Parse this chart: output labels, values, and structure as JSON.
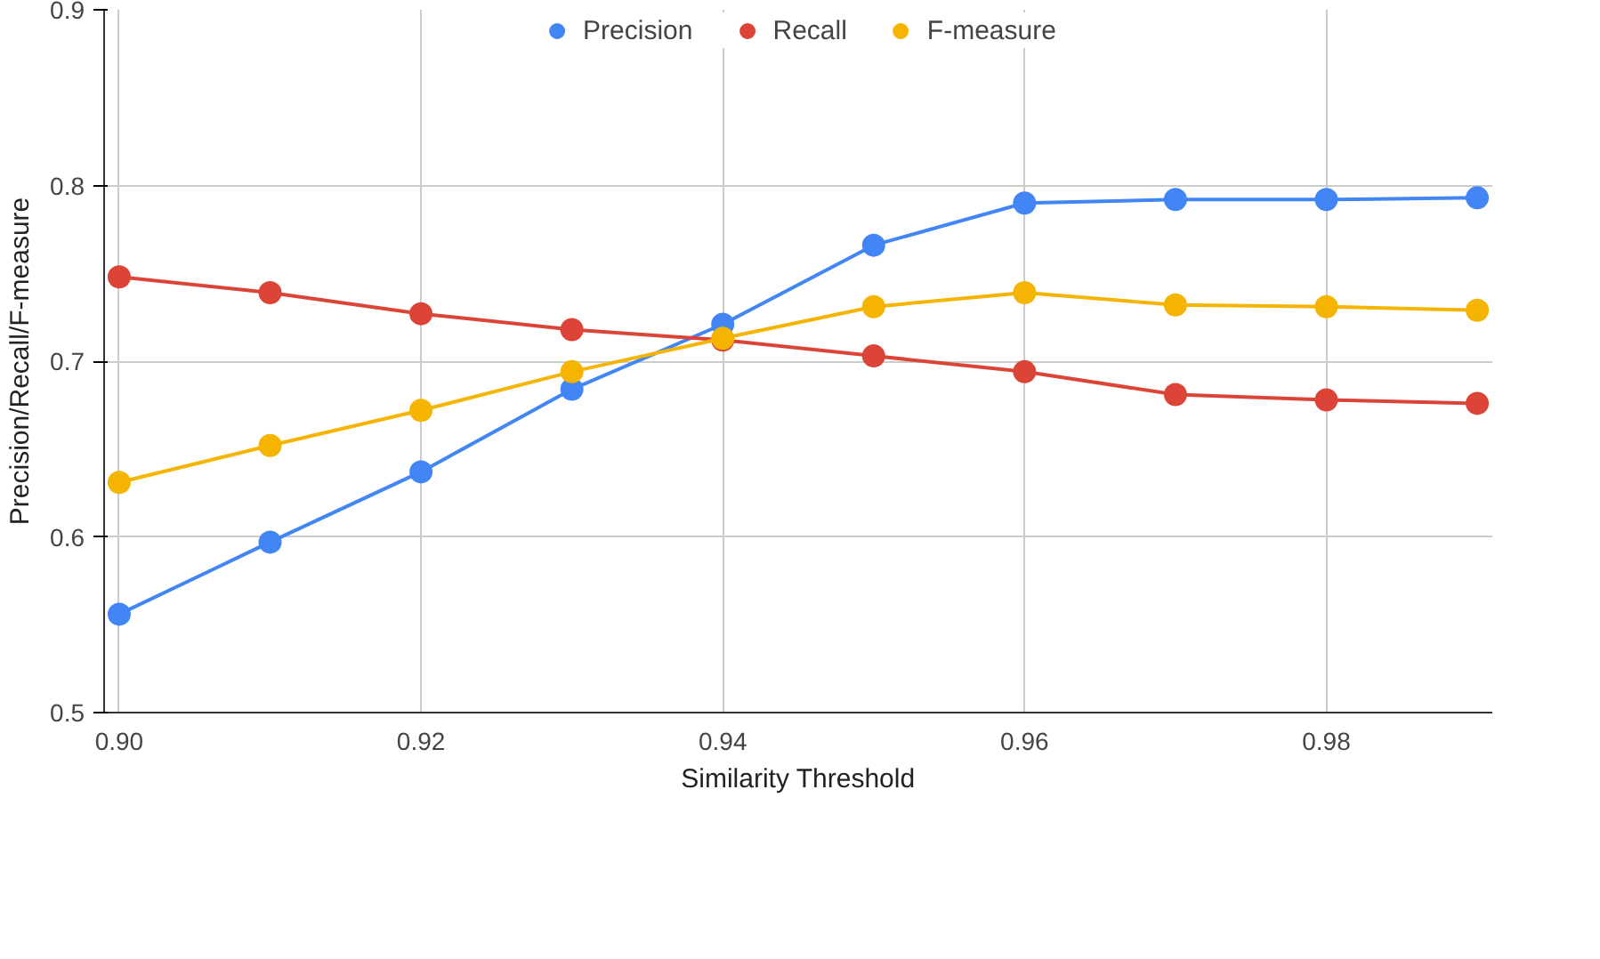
{
  "chart_data": {
    "type": "line",
    "xlabel": "Similarity Threshold",
    "ylabel": "Precision/Recall/F-measure",
    "x": [
      0.9,
      0.91,
      0.92,
      0.93,
      0.94,
      0.95,
      0.96,
      0.97,
      0.98,
      0.99
    ],
    "series": [
      {
        "name": "Precision",
        "color": "#4285f4",
        "values": [
          0.556,
          0.597,
          0.637,
          0.684,
          0.721,
          0.766,
          0.79,
          0.792,
          0.792,
          0.793
        ]
      },
      {
        "name": "Recall",
        "color": "#db4437",
        "values": [
          0.748,
          0.739,
          0.727,
          0.718,
          0.712,
          0.703,
          0.694,
          0.681,
          0.678,
          0.676
        ]
      },
      {
        "name": "F-measure",
        "color": "#f4b400",
        "values": [
          0.631,
          0.652,
          0.672,
          0.694,
          0.713,
          0.731,
          0.739,
          0.732,
          0.731,
          0.729
        ]
      }
    ],
    "xlim": [
      0.899,
      0.991
    ],
    "ylim": [
      0.5,
      0.9
    ],
    "xticks": [
      {
        "value": 0.9,
        "label": "0.90"
      },
      0.92,
      0.94,
      0.96,
      0.98
    ],
    "yticks": [
      0.5,
      0.6,
      0.7,
      0.8,
      0.9
    ],
    "grid": true,
    "legend": "top",
    "marker": "circle",
    "line_style": "solid"
  }
}
